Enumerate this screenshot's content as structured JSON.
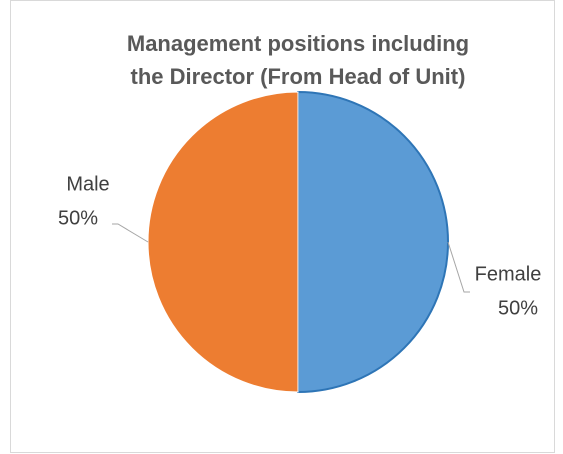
{
  "chart_data": {
    "type": "pie",
    "title": [
      "Management positions including",
      "the Director (From Head of Unit)"
    ],
    "categories": [
      "Female",
      "Male"
    ],
    "values": [
      50,
      50
    ],
    "value_labels": [
      "50%",
      "50%"
    ],
    "colors": [
      "#5b9bd5",
      "#ed7d31"
    ]
  }
}
